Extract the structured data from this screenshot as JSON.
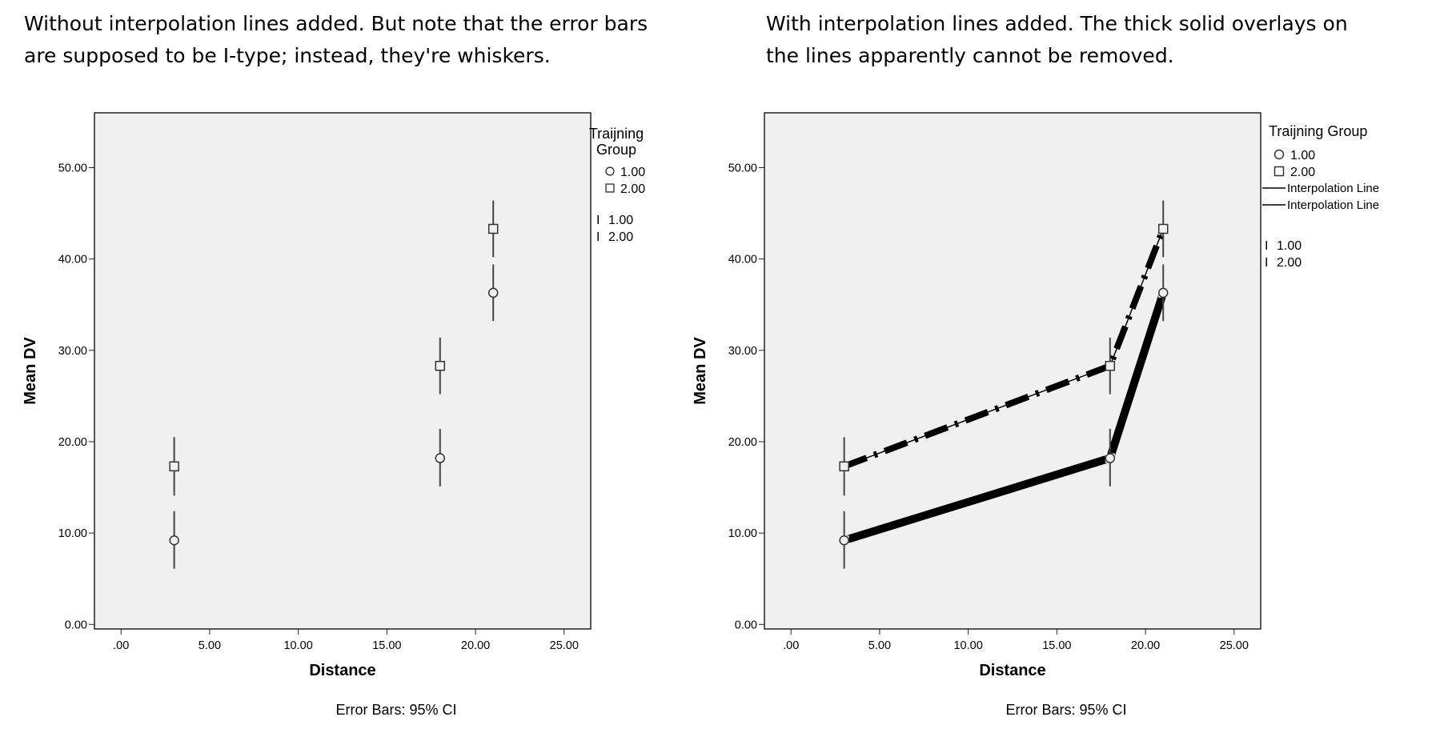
{
  "captions": {
    "left": "Without interpolation lines added. But note that the error bars\nare supposed to be I-type; instead, they're whiskers.",
    "right": "With interpolation lines added. The thick solid overlays on\nthe lines apparently cannot be removed."
  },
  "chart_data": [
    {
      "type": "scatter",
      "xlabel": "Distance",
      "ylabel": "Mean DV",
      "xlim": [
        -1.5,
        26.5
      ],
      "ylim": [
        -0.5,
        56
      ],
      "x_ticks": [
        ".00",
        "5.00",
        "10.00",
        "15.00",
        "20.00",
        "25.00"
      ],
      "y_ticks": [
        "0.00",
        "10.00",
        "20.00",
        "30.00",
        "40.00",
        "50.00"
      ],
      "x_tick_values": [
        0,
        5,
        10,
        15,
        20,
        25
      ],
      "y_tick_values": [
        0,
        10,
        20,
        30,
        40,
        50
      ],
      "legend_title": "Traijning Group",
      "legend_placement": "right",
      "footnote": "Error Bars: 95% CI",
      "series": [
        {
          "name": "1.00",
          "marker": "circle",
          "x": [
            3,
            18,
            21
          ],
          "y": [
            9.2,
            18.2,
            36.3
          ],
          "ci_low": [
            6.1,
            15.1,
            33.2
          ],
          "ci_high": [
            12.4,
            21.4,
            39.4
          ]
        },
        {
          "name": "2.00",
          "marker": "square",
          "x": [
            3,
            18,
            21
          ],
          "y": [
            17.3,
            28.3,
            43.3
          ],
          "ci_low": [
            14.1,
            25.2,
            40.2
          ],
          "ci_high": [
            20.5,
            31.4,
            46.4
          ]
        }
      ],
      "errorbar_legend": [
        "1.00",
        "2.00"
      ],
      "interpolation_lines": false
    },
    {
      "type": "line",
      "xlabel": "Distance",
      "ylabel": "Mean DV",
      "xlim": [
        -1.5,
        26.5
      ],
      "ylim": [
        -0.5,
        56
      ],
      "x_ticks": [
        ".00",
        "5.00",
        "10.00",
        "15.00",
        "20.00",
        "25.00"
      ],
      "y_ticks": [
        "0.00",
        "10.00",
        "20.00",
        "30.00",
        "40.00",
        "50.00"
      ],
      "x_tick_values": [
        0,
        5,
        10,
        15,
        20,
        25
      ],
      "y_tick_values": [
        0,
        10,
        20,
        30,
        40,
        50
      ],
      "legend_title": "Traijning Group",
      "legend_placement": "right",
      "footnote": "Error Bars: 95% CI",
      "series": [
        {
          "name": "1.00",
          "marker": "circle",
          "x": [
            3,
            18,
            21
          ],
          "y": [
            9.2,
            18.2,
            36.3
          ],
          "ci_low": [
            6.1,
            15.1,
            33.2
          ],
          "ci_high": [
            12.4,
            21.4,
            39.4
          ]
        },
        {
          "name": "2.00",
          "marker": "square",
          "x": [
            3,
            18,
            21
          ],
          "y": [
            17.3,
            28.3,
            43.3
          ],
          "ci_low": [
            14.1,
            25.2,
            40.2
          ],
          "ci_high": [
            20.5,
            31.4,
            46.4
          ]
        }
      ],
      "line_legend": [
        "Interpolation Line",
        "Interpolation Line"
      ],
      "errorbar_legend": [
        "1.00",
        "2.00"
      ],
      "interpolation_lines": true
    }
  ]
}
